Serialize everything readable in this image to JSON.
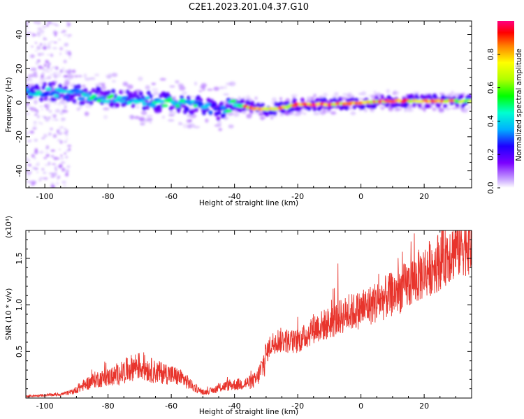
{
  "title": "C2E1.2023.201.04.37.G10",
  "chart_data": [
    {
      "type": "heatmap",
      "xlabel": "Height of straight line (km)",
      "ylabel": "Frequency (Hz)",
      "xlim": [
        -106,
        35
      ],
      "ylim": [
        -50,
        48
      ],
      "x_ticks": [
        -100,
        -80,
        -60,
        -40,
        -20,
        0,
        20
      ],
      "y_ticks": [
        -40,
        -20,
        0,
        20,
        40
      ],
      "colorbar": {
        "label": "Normalized spectral amplitude",
        "ticks": [
          0.0,
          0.2,
          0.4,
          0.6,
          0.8
        ],
        "range": [
          0,
          1
        ],
        "colormap": [
          "#ffffff",
          "#c9a6ff",
          "#7a00ff",
          "#1e00ff",
          "#00b0ff",
          "#00ffd0",
          "#00ff00",
          "#b0ff00",
          "#ffff00",
          "#ff8000",
          "#ff0000",
          "#ff0080"
        ]
      },
      "ridge": {
        "x": [
          -106,
          -95,
          -90,
          -80,
          -70,
          -60,
          -50,
          -45,
          -40,
          -35,
          -30,
          -25,
          -20,
          -10,
          0,
          10,
          20,
          35
        ],
        "frequency": [
          7,
          6,
          5,
          3,
          1,
          0,
          -2,
          -5,
          -1,
          -3,
          -4,
          -3,
          -1,
          -1,
          0,
          1,
          1,
          1
        ],
        "amplitude": [
          0.45,
          0.4,
          0.45,
          0.5,
          0.4,
          0.5,
          0.45,
          0.3,
          0.6,
          0.9,
          0.95,
          0.9,
          0.95,
          0.95,
          0.95,
          0.95,
          0.9,
          0.7
        ]
      }
    },
    {
      "type": "line",
      "xlabel": "Height of straight line (km)",
      "ylabel": "SNR (10 * v/v)",
      "y_multiplier": "(x10⁴)",
      "xlim": [
        -106,
        35
      ],
      "ylim": [
        0,
        1.8
      ],
      "x_ticks": [
        -100,
        -80,
        -60,
        -40,
        -20,
        0,
        20
      ],
      "y_ticks": [
        0.5,
        1.0,
        1.5
      ],
      "y_tick_labels": [
        "0.5",
        "1.0",
        "1.5"
      ],
      "color": "#e8342c",
      "series": [
        {
          "x": [
            -106,
            -100,
            -95,
            -92,
            -90,
            -87,
            -84,
            -80,
            -77,
            -74,
            -71,
            -68,
            -65,
            -62,
            -59,
            -56,
            -53,
            -50,
            -47,
            -44,
            -41,
            -38,
            -35,
            -33,
            -31,
            -29,
            -27,
            -24,
            -21,
            -18,
            -15,
            -12,
            -9,
            -6,
            -3,
            0,
            3,
            6,
            9,
            12,
            15,
            18,
            21,
            24,
            27,
            30,
            33,
            35
          ],
          "values": [
            0.02,
            0.03,
            0.04,
            0.06,
            0.09,
            0.15,
            0.2,
            0.22,
            0.25,
            0.3,
            0.35,
            0.32,
            0.28,
            0.27,
            0.24,
            0.2,
            0.12,
            0.06,
            0.08,
            0.12,
            0.14,
            0.15,
            0.17,
            0.2,
            0.35,
            0.55,
            0.62,
            0.62,
            0.6,
            0.65,
            0.75,
            0.78,
            0.82,
            0.88,
            0.92,
            0.95,
            1.0,
            1.05,
            1.1,
            1.15,
            1.22,
            1.3,
            1.38,
            1.45,
            1.55,
            1.62,
            1.68,
            1.7
          ]
        }
      ]
    }
  ]
}
